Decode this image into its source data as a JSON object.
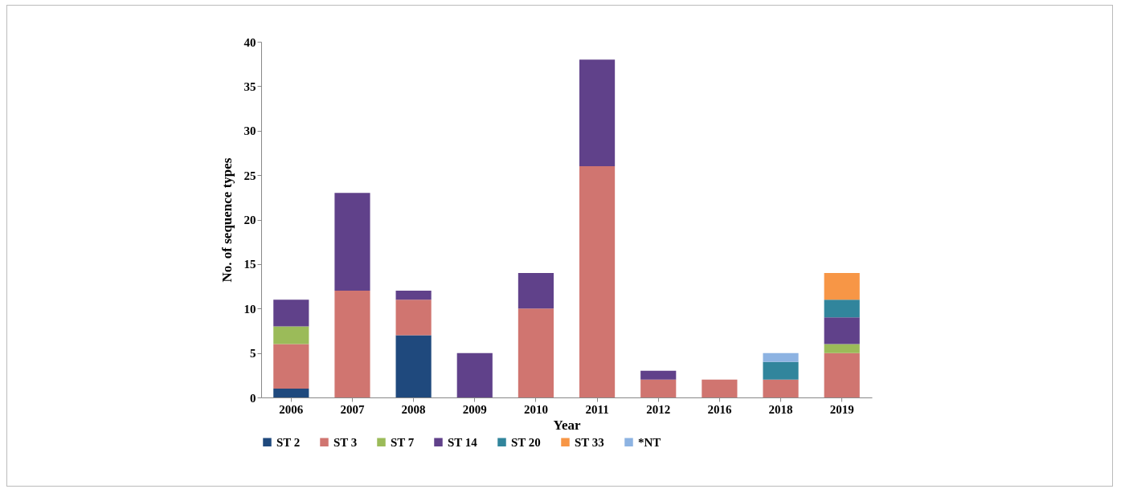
{
  "chart_data": {
    "type": "bar",
    "stacked": true,
    "xlabel": "Year",
    "ylabel": "No. of sequence types",
    "categories": [
      "2006",
      "2007",
      "2008",
      "2009",
      "2010",
      "2011",
      "2012",
      "2016",
      "2018",
      "2019"
    ],
    "series": [
      {
        "name": "ST 2",
        "color": "#1f497d",
        "values": [
          1,
          null,
          7,
          null,
          null,
          null,
          null,
          null,
          null,
          null
        ]
      },
      {
        "name": "ST 3",
        "color": "#d07570",
        "values": [
          5,
          12,
          4,
          null,
          10,
          26,
          2,
          2,
          2,
          5
        ]
      },
      {
        "name": "ST 7",
        "color": "#9bbb59",
        "values": [
          2,
          null,
          null,
          null,
          null,
          null,
          null,
          null,
          null,
          1
        ]
      },
      {
        "name": "ST 14",
        "color": "#60418a",
        "values": [
          3,
          11,
          1,
          5,
          4,
          12,
          1,
          null,
          null,
          3
        ]
      },
      {
        "name": "ST 20",
        "color": "#31859c",
        "values": [
          null,
          null,
          null,
          null,
          null,
          null,
          null,
          null,
          2,
          2
        ]
      },
      {
        "name": "ST 33",
        "color": "#f79646",
        "values": [
          null,
          null,
          null,
          null,
          null,
          null,
          null,
          null,
          null,
          3
        ]
      },
      {
        "name": "*NT",
        "color": "#8db3e2",
        "values": [
          null,
          null,
          null,
          null,
          null,
          null,
          null,
          null,
          1,
          null
        ]
      }
    ],
    "ylim": [
      0,
      40
    ],
    "yticks": [
      0,
      5,
      10,
      15,
      20,
      25,
      30,
      35,
      40
    ],
    "grid": false,
    "legend": "bottom"
  }
}
